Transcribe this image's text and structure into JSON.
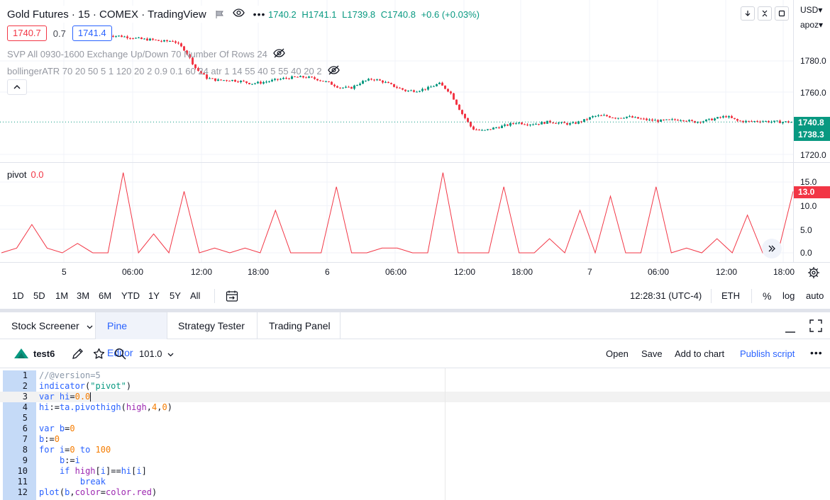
{
  "header": {
    "symbol_title": "Gold Futures · 15 · COMEX · TradingView",
    "ohlc": {
      "open": "1740.2",
      "high": "H1741.1",
      "low": "L1739.8",
      "close": "C1740.8",
      "change": "+0.6 (+0.03%)"
    },
    "bid": "1740.7",
    "spread": "0.7",
    "ask": "1741.4",
    "currency": "USD",
    "currency_caret": "▾",
    "account": "apoz",
    "account_caret": "▾"
  },
  "indicators": {
    "svp": "SVP All 0930-1600 Exchange Up/Down 70 Number Of Rows 24",
    "bollinger": "bollingerATR 70 20 50 5 1 120 20 2 0.9 0.1 60 24 atr 1 14 55 40 5 55 40 20 2",
    "pivot_name": "pivot",
    "pivot_value": "0.0"
  },
  "price_axis": {
    "main": [
      "1780.0",
      "1760.0",
      "1720.0"
    ],
    "current_price": "1740.8",
    "secondary_price": "1738.3",
    "pivot": [
      "15.0",
      "10.0",
      "5.0",
      "0.0"
    ],
    "pivot_current": "13.0"
  },
  "time_axis": [
    "5",
    "06:00",
    "12:00",
    "18:00",
    "6",
    "06:00",
    "12:00",
    "18:00",
    "7",
    "06:00",
    "12:00",
    "18:00"
  ],
  "range_bar": {
    "ranges": [
      "1D",
      "5D",
      "1M",
      "3M",
      "6M",
      "YTD",
      "1Y",
      "5Y",
      "All"
    ],
    "clock": "12:28:31 (UTC-4)",
    "session": "ETH",
    "percent": "%",
    "log": "log",
    "auto": "auto"
  },
  "panel_tabs": {
    "stock_screener": "Stock Screener",
    "pine_editor": "Pine Editor",
    "strategy_tester": "Strategy Tester",
    "trading_panel": "Trading Panel"
  },
  "editor": {
    "script_name": "test6",
    "version": "101.0",
    "open": "Open",
    "save": "Save",
    "add_to_chart": "Add to chart",
    "publish": "Publish script",
    "more": "•••"
  },
  "code_lines": [
    "//@version=5",
    "indicator(\"pivot\")",
    "var hi=0.0",
    "hi:=ta.pivothigh(high,4,0)",
    "",
    "var b=0",
    "b:=0",
    "for i=0 to 100",
    "    b:=i",
    "    if high[i]==hi[i]",
    "        break",
    "plot(b,color=color.red)"
  ],
  "line_numbers": [
    "1",
    "2",
    "3",
    "4",
    "5",
    "6",
    "7",
    "8",
    "9",
    "10",
    "11",
    "12"
  ],
  "chart_data": [
    {
      "type": "line",
      "title": "Gold Futures · 15 · COMEX · TradingView",
      "series": [
        {
          "name": "price",
          "values": [
            1796.5,
            1796.0,
            1795.2,
            1794.0,
            1793.6,
            1792.5,
            1793.0,
            1787.0,
            1775.0,
            1769.0,
            1767.5,
            1767.8,
            1767.0,
            1765.5,
            1766.2,
            1767.5,
            1768.8,
            1769.5,
            1769.6,
            1768.2,
            1766.0,
            1763.0,
            1762.5,
            1766.5,
            1768.5,
            1766.5,
            1763.5,
            1760.8,
            1761.0,
            1762.5,
            1765.5,
            1760.0,
            1747.0,
            1736.5,
            1735.0,
            1737.0,
            1738.5,
            1740.5,
            1739.5,
            1739.8,
            1741.0,
            1740.0,
            1739.5,
            1741.5,
            1744.5,
            1744.8,
            1743.5,
            1744.2,
            1743.0,
            1742.0,
            1741.5,
            1742.0,
            1742.5,
            1740.8,
            1741.5,
            1743.0,
            1744.5,
            1741.5,
            1741.0,
            1741.5,
            1741.0,
            1740.8,
            1740.8
          ]
        }
      ],
      "ylim": [
        1715,
        1800
      ],
      "y_ticks": [
        1780,
        1760,
        1720
      ],
      "grid": true
    },
    {
      "type": "line",
      "title": "pivot",
      "series": [
        {
          "name": "pivot",
          "values": [
            0,
            1,
            6,
            1,
            0,
            2,
            0,
            0,
            17,
            0,
            4,
            0,
            13,
            0,
            1,
            0,
            1,
            0,
            9,
            0,
            0,
            0,
            14,
            0,
            0,
            1,
            1,
            0,
            0,
            17,
            0,
            0,
            0,
            14,
            0,
            0,
            3,
            0,
            9,
            0,
            12,
            0,
            0,
            14,
            0,
            1,
            0,
            3,
            0,
            8,
            0,
            0,
            13
          ],
          "color": "#f23645"
        }
      ],
      "ylim": [
        -1.5,
        17
      ],
      "y_ticks": [
        15,
        10,
        5,
        0
      ]
    }
  ],
  "colors": {
    "up": "#089981",
    "down": "#f23645",
    "accent": "#2962ff",
    "pivot": "#f23645"
  }
}
